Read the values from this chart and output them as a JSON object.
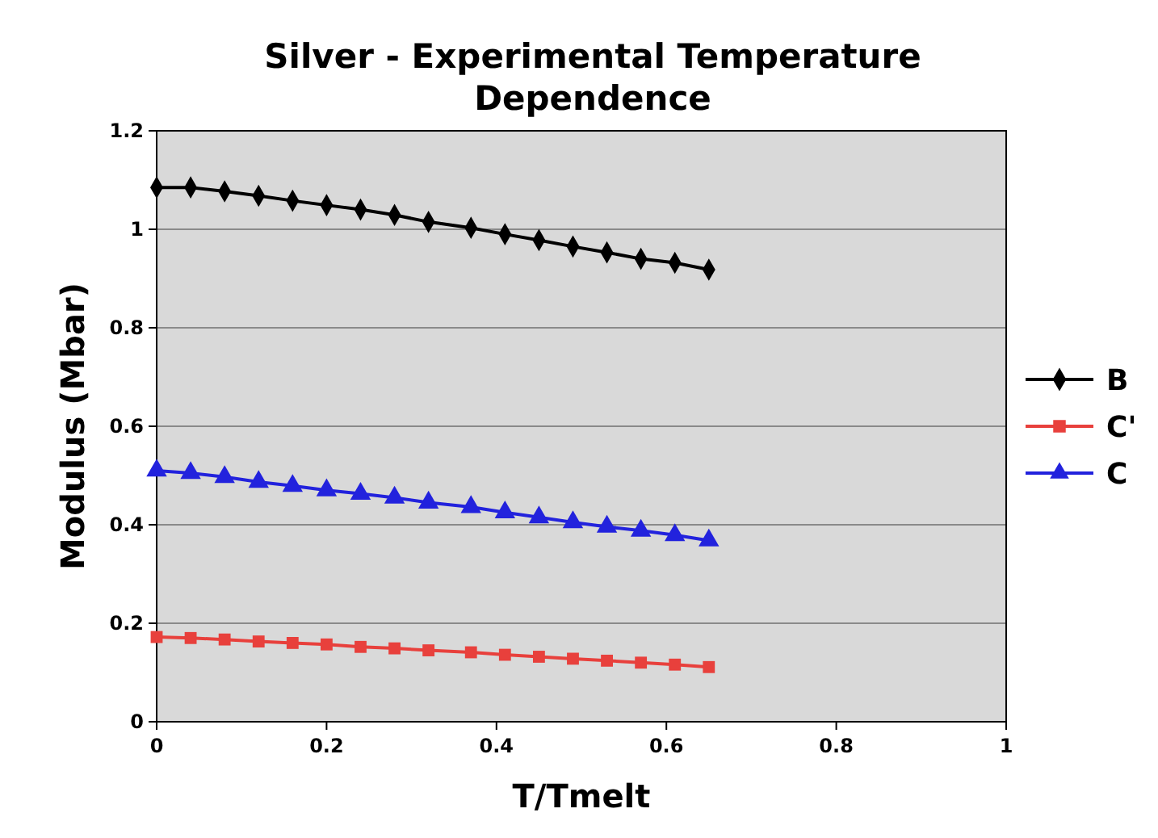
{
  "chart_data": {
    "type": "line",
    "title": "Silver - Experimental Temperature Dependence",
    "xlabel": "T/Tmelt",
    "ylabel": "Modulus (Mbar)",
    "x": [
      0,
      0.04,
      0.08,
      0.12,
      0.16,
      0.2,
      0.24,
      0.28,
      0.32,
      0.37,
      0.41,
      0.45,
      0.49,
      0.53,
      0.57,
      0.61,
      0.65
    ],
    "series": [
      {
        "name": "B",
        "color": "#000000",
        "marker": "diamond",
        "values": [
          1.085,
          1.085,
          1.077,
          1.068,
          1.058,
          1.049,
          1.04,
          1.029,
          1.015,
          1.003,
          0.99,
          0.978,
          0.965,
          0.953,
          0.94,
          0.932,
          0.918
        ]
      },
      {
        "name": "C'",
        "color": "#e8403c",
        "marker": "square",
        "values": [
          0.172,
          0.17,
          0.167,
          0.163,
          0.16,
          0.157,
          0.152,
          0.149,
          0.145,
          0.141,
          0.136,
          0.132,
          0.128,
          0.124,
          0.12,
          0.116,
          0.111
        ]
      },
      {
        "name": "C",
        "color": "#2222dd",
        "marker": "triangle",
        "values": [
          0.51,
          0.505,
          0.497,
          0.487,
          0.479,
          0.47,
          0.463,
          0.455,
          0.445,
          0.436,
          0.425,
          0.415,
          0.405,
          0.396,
          0.388,
          0.379,
          0.368
        ]
      }
    ],
    "xlim": [
      0,
      1
    ],
    "xticks": [
      0,
      0.2,
      0.4,
      0.6,
      0.8,
      1
    ],
    "ylim": [
      0,
      1.2
    ],
    "yticks": [
      0,
      0.2,
      0.4,
      0.6,
      0.8,
      1,
      1.2
    ],
    "grid": "y",
    "legend": "right"
  }
}
